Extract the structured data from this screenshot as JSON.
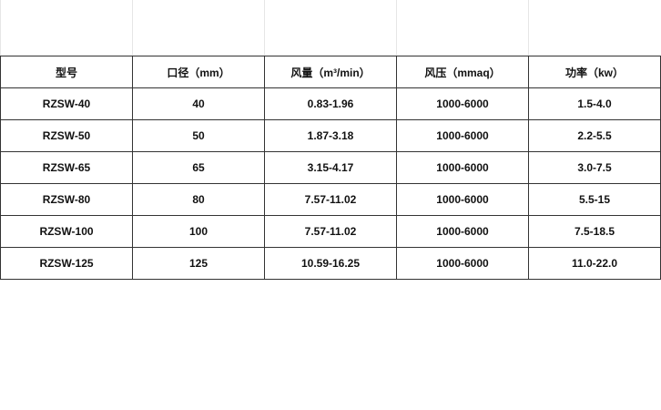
{
  "table": {
    "headers": [
      "型号",
      "口径（mm）",
      "风量（m³/min）",
      "风压（mmaq）",
      "功率（kw）"
    ],
    "rows": [
      [
        "RZSW-40",
        "40",
        "0.83-1.96",
        "1000-6000",
        "1.5-4.0"
      ],
      [
        "RZSW-50",
        "50",
        "1.87-3.18",
        "1000-6000",
        "2.2-5.5"
      ],
      [
        "RZSW-65",
        "65",
        "3.15-4.17",
        "1000-6000",
        "3.0-7.5"
      ],
      [
        "RZSW-80",
        "80",
        "7.57-11.02",
        "1000-6000",
        "5.5-15"
      ],
      [
        "RZSW-100",
        "100",
        "7.57-11.02",
        "1000-6000",
        "7.5-18.5"
      ],
      [
        "RZSW-125",
        "125",
        "10.59-16.25",
        "1000-6000",
        "11.0-22.0"
      ]
    ]
  }
}
